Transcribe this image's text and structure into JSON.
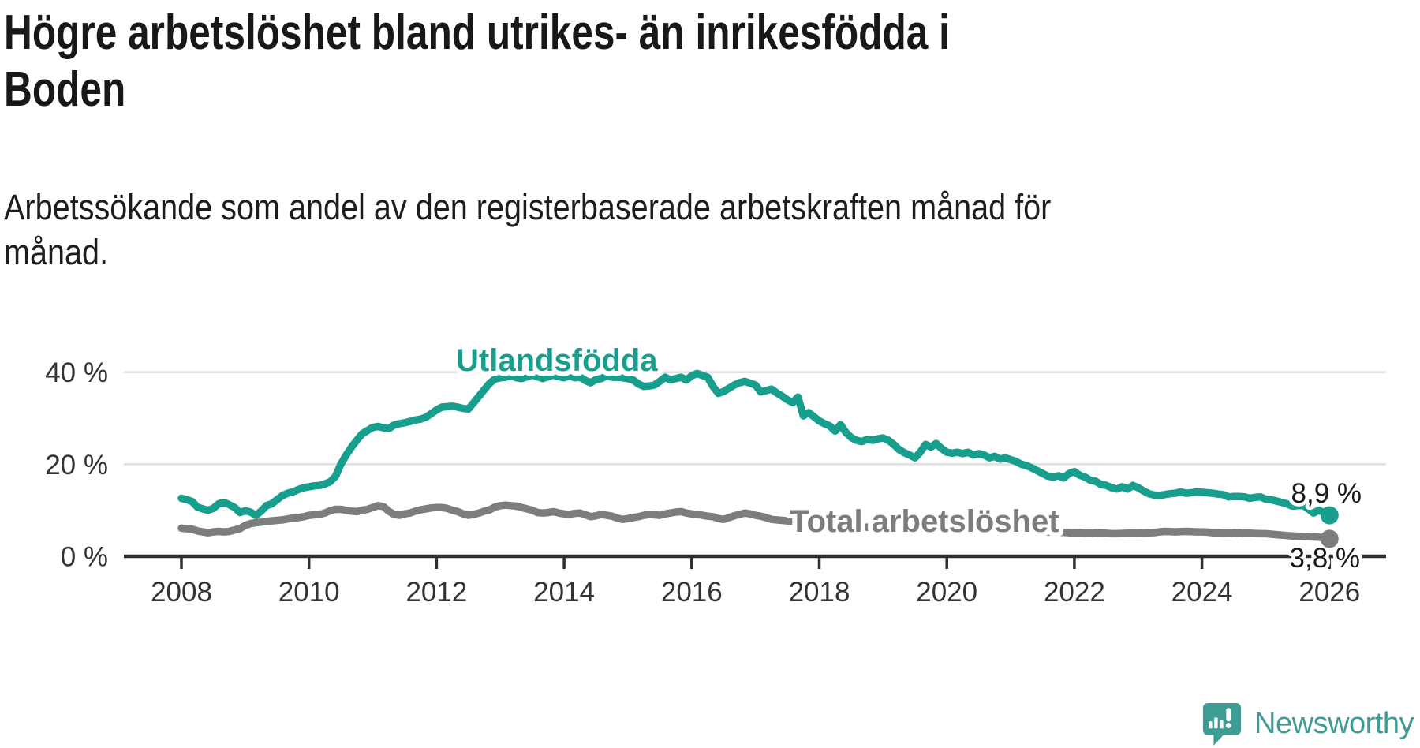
{
  "title_lines": [
    "Högre arbetslöshet bland utrikes- än inrikesfödda i",
    "Boden"
  ],
  "subtitle_lines": [
    "Arbetssökande som andel av den registerbaserade arbetskraften månad för",
    "månad."
  ],
  "branding": {
    "logo_text": "Newsworthy",
    "logo_color": "#3f9c95"
  },
  "chart_data": {
    "type": "line",
    "title": "Högre arbetslöshet bland utrikes- än inrikesfödda i Boden",
    "xlabel": "",
    "ylabel": "",
    "x_start_year": 2008,
    "points_per_year": 12,
    "x_ticks": [
      2008,
      2010,
      2012,
      2014,
      2016,
      2018,
      2020,
      2022,
      2024,
      2026
    ],
    "y_ticks": [
      {
        "label": "0 %",
        "value": 0
      },
      {
        "label": "20 %",
        "value": 20
      },
      {
        "label": "40 %",
        "value": 40
      }
    ],
    "ylim": [
      0,
      45
    ],
    "grid": "horizontal",
    "legend_position": "inline-labels",
    "series": [
      {
        "name": "Total arbetslöshet",
        "color": "#7d7d7d",
        "end_label": "3,8 %",
        "values": [
          6.1,
          6.0,
          5.9,
          5.5,
          5.3,
          5.1,
          5.3,
          5.4,
          5.3,
          5.4,
          5.7,
          6.0,
          6.7,
          7.1,
          7.3,
          7.4,
          7.6,
          7.7,
          7.8,
          7.9,
          8.1,
          8.3,
          8.4,
          8.6,
          8.9,
          9.0,
          9.1,
          9.4,
          9.9,
          10.2,
          10.2,
          10.0,
          9.8,
          9.7,
          10.0,
          10.2,
          10.6,
          11.0,
          10.8,
          9.8,
          9.1,
          8.9,
          9.2,
          9.4,
          9.8,
          10.1,
          10.3,
          10.5,
          10.6,
          10.6,
          10.4,
          10.0,
          9.7,
          9.2,
          8.9,
          9.1,
          9.4,
          9.8,
          10.1,
          10.7,
          11.0,
          11.1,
          11.0,
          10.9,
          10.6,
          10.3,
          10.0,
          9.5,
          9.4,
          9.5,
          9.7,
          9.4,
          9.2,
          9.1,
          9.3,
          9.4,
          9.0,
          8.6,
          8.8,
          9.1,
          8.9,
          8.7,
          8.3,
          8.0,
          8.2,
          8.4,
          8.6,
          8.9,
          9.1,
          9.0,
          8.9,
          9.2,
          9.4,
          9.6,
          9.7,
          9.4,
          9.2,
          9.1,
          8.9,
          8.7,
          8.6,
          8.2,
          8.0,
          8.4,
          8.8,
          9.1,
          9.4,
          9.2,
          8.9,
          8.7,
          8.4,
          8.0,
          7.9,
          7.8,
          7.7,
          7.6,
          7.5,
          7.4,
          7.3,
          7.2,
          7.1,
          7.0,
          6.9,
          6.8,
          6.7,
          6.6,
          6.5,
          6.4,
          6.4,
          6.3,
          6.2,
          6.2,
          6.1,
          6.1,
          6.0,
          6.0,
          5.9,
          5.9,
          5.8,
          5.8,
          5.8,
          5.7,
          5.7,
          5.7,
          5.8,
          5.9,
          6.1,
          6.2,
          6.3,
          6.3,
          6.2,
          6.1,
          6.0,
          5.9,
          5.8,
          5.7,
          5.7,
          5.6,
          5.6,
          5.5,
          5.5,
          5.4,
          5.4,
          5.3,
          5.3,
          5.2,
          5.2,
          5.1,
          5.1,
          5.1,
          5.0,
          5.0,
          5.1,
          5.05,
          5.0,
          4.9,
          4.9,
          4.95,
          5.0,
          5.0,
          5.0,
          5.05,
          5.1,
          5.15,
          5.3,
          5.4,
          5.35,
          5.3,
          5.35,
          5.4,
          5.35,
          5.3,
          5.3,
          5.25,
          5.1,
          5.1,
          5.0,
          5.0,
          5.1,
          5.1,
          5.0,
          5.0,
          4.95,
          4.9,
          4.9,
          4.8,
          4.7,
          4.6,
          4.5,
          4.4,
          4.35,
          4.3,
          4.25,
          4.2,
          4.15,
          4.0,
          3.8
        ]
      },
      {
        "name": "Utlandsfödda",
        "color": "#179e8d",
        "end_label": "8,9 %",
        "values": [
          12.6,
          12.3,
          11.9,
          10.7,
          10.3,
          10.0,
          10.4,
          11.4,
          11.7,
          11.2,
          10.6,
          9.5,
          9.9,
          9.6,
          8.9,
          9.8,
          11.0,
          11.4,
          12.3,
          13.2,
          13.7,
          14.0,
          14.5,
          14.9,
          15.1,
          15.3,
          15.4,
          15.7,
          16.2,
          17.4,
          20.0,
          22.0,
          23.7,
          25.2,
          26.6,
          27.3,
          28.0,
          28.2,
          27.9,
          27.7,
          28.5,
          28.8,
          29.0,
          29.3,
          29.6,
          29.8,
          30.2,
          31.0,
          31.8,
          32.4,
          32.5,
          32.6,
          32.4,
          32.1,
          32.0,
          33.4,
          34.8,
          36.2,
          37.6,
          38.5,
          38.8,
          38.9,
          39.2,
          38.8,
          38.6,
          39.0,
          39.4,
          39.0,
          38.6,
          39.0,
          39.4,
          39.0,
          38.8,
          39.2,
          38.8,
          38.9,
          38.2,
          37.7,
          38.4,
          38.6,
          39.2,
          38.9,
          38.9,
          38.8,
          38.6,
          38.3,
          37.4,
          36.9,
          37.0,
          37.2,
          38.0,
          38.9,
          38.3,
          38.6,
          38.9,
          38.3,
          39.2,
          39.7,
          39.3,
          38.9,
          36.9,
          35.4,
          35.8,
          36.5,
          37.2,
          37.7,
          38.0,
          37.6,
          37.2,
          35.7,
          36.0,
          36.3,
          35.5,
          34.8,
          34.0,
          33.4,
          34.6,
          30.5,
          31.2,
          30.3,
          29.4,
          28.8,
          28.3,
          27.2,
          28.6,
          26.9,
          25.8,
          25.2,
          24.9,
          25.4,
          25.2,
          25.5,
          25.7,
          25.2,
          24.3,
          23.2,
          22.5,
          22.0,
          21.4,
          22.6,
          24.3,
          23.7,
          24.5,
          23.4,
          22.6,
          22.4,
          22.6,
          22.3,
          22.6,
          22.0,
          22.3,
          22.0,
          21.4,
          21.7,
          21.1,
          21.4,
          21.0,
          20.6,
          20.0,
          19.7,
          19.2,
          18.6,
          18.0,
          17.4,
          17.2,
          17.5,
          17.0,
          18.0,
          18.4,
          17.6,
          17.2,
          16.5,
          16.3,
          15.6,
          15.4,
          14.9,
          14.6,
          15.1,
          14.6,
          15.4,
          14.9,
          14.2,
          13.6,
          13.3,
          13.2,
          13.4,
          13.6,
          13.7,
          14.0,
          13.7,
          13.8,
          14.0,
          13.9,
          13.8,
          13.7,
          13.5,
          13.4,
          12.9,
          13.0,
          13.0,
          12.9,
          12.6,
          12.8,
          12.9,
          12.4,
          12.3,
          12.0,
          11.7,
          11.4,
          10.9,
          11.0,
          11.1,
          10.3,
          9.4,
          10.0,
          9.5,
          8.9
        ]
      }
    ]
  }
}
